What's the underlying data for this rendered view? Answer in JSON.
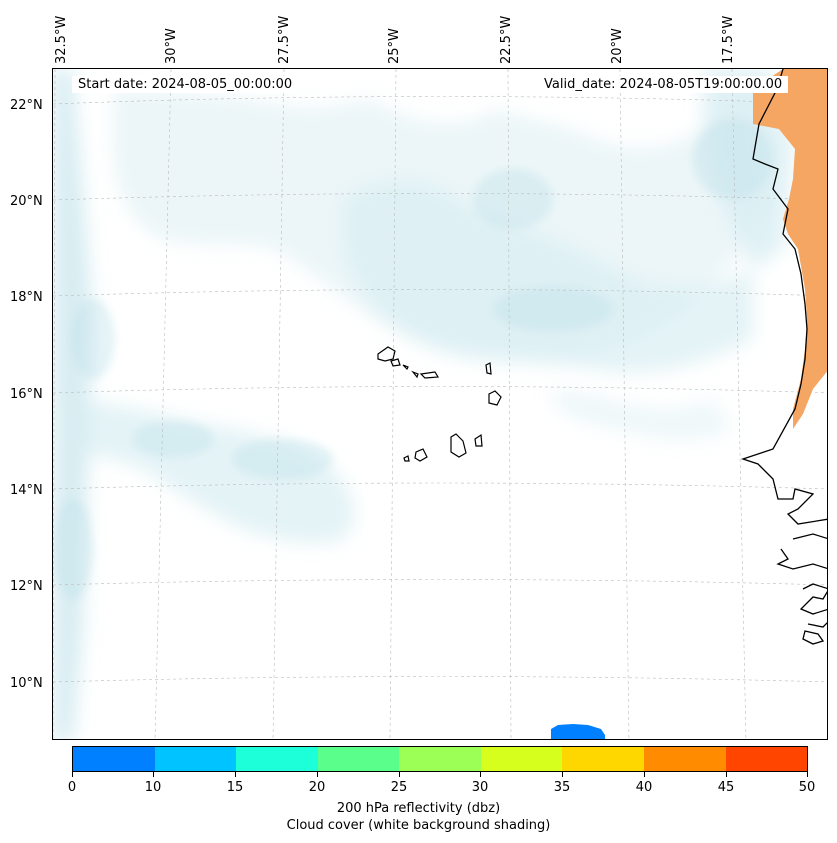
{
  "map": {
    "lon_labels": [
      "32.5°W",
      "30°W",
      "27.5°W",
      "25°W",
      "22.5°W",
      "20°W",
      "17.5°W"
    ],
    "lat_labels": [
      "22°N",
      "20°N",
      "18°N",
      "16°N",
      "14°N",
      "12°N",
      "10°N"
    ],
    "start_date": "Start date: 2024-08-05_00:00:00",
    "valid_date": "Valid_date: 2024-08-05T19:00:00.00",
    "cloud_color": "#b9dfe8",
    "land_color": "#f4a662"
  },
  "colorbar": {
    "colors": [
      "#0080ff",
      "#00c3ff",
      "#1cffd9",
      "#5aff8b",
      "#9bff55",
      "#d6ff1d",
      "#ffd700",
      "#ff8c00",
      "#ff4500"
    ],
    "ticks": [
      "0",
      "10",
      "15",
      "20",
      "25",
      "30",
      "35",
      "40",
      "45",
      "50"
    ],
    "label_line1": "200 hPa reflectivity (dbz)",
    "label_line2": "Cloud cover (white background shading)"
  }
}
